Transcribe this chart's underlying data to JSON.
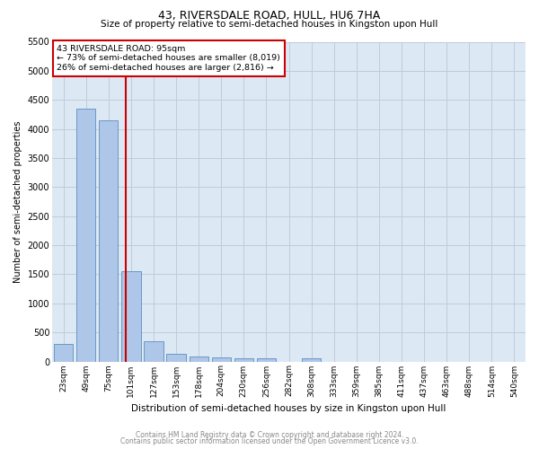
{
  "title": "43, RIVERSDALE ROAD, HULL, HU6 7HA",
  "subtitle": "Size of property relative to semi-detached houses in Kingston upon Hull",
  "xlabel": "Distribution of semi-detached houses by size in Kingston upon Hull",
  "ylabel": "Number of semi-detached properties",
  "footer1": "Contains HM Land Registry data © Crown copyright and database right 2024.",
  "footer2": "Contains public sector information licensed under the Open Government Licence v3.0.",
  "categories": [
    "23sqm",
    "49sqm",
    "75sqm",
    "101sqm",
    "127sqm",
    "153sqm",
    "178sqm",
    "204sqm",
    "230sqm",
    "256sqm",
    "282sqm",
    "308sqm",
    "333sqm",
    "359sqm",
    "385sqm",
    "411sqm",
    "437sqm",
    "463sqm",
    "488sqm",
    "514sqm",
    "540sqm"
  ],
  "values": [
    300,
    4350,
    4150,
    1550,
    350,
    130,
    80,
    70,
    60,
    55,
    0,
    60,
    0,
    0,
    0,
    0,
    0,
    0,
    0,
    0,
    0
  ],
  "bar_color": "#aec6e8",
  "bar_edge_color": "#5a8fc0",
  "property_line_color": "#cc0000",
  "annotation_text": "43 RIVERSDALE ROAD: 95sqm\n← 73% of semi-detached houses are smaller (8,019)\n26% of semi-detached houses are larger (2,816) →",
  "annotation_box_color": "#cc0000",
  "ylim": [
    0,
    5500
  ],
  "yticks": [
    0,
    500,
    1000,
    1500,
    2000,
    2500,
    3000,
    3500,
    4000,
    4500,
    5000,
    5500
  ],
  "ax_facecolor": "#dce9f5",
  "background_color": "#ffffff",
  "grid_color": "#c0ccd8",
  "title_fontsize": 9,
  "subtitle_fontsize": 7.5,
  "ylabel_fontsize": 7,
  "xlabel_fontsize": 7.5,
  "footer_fontsize": 5.5,
  "tick_fontsize": 6.5,
  "ytick_fontsize": 7
}
